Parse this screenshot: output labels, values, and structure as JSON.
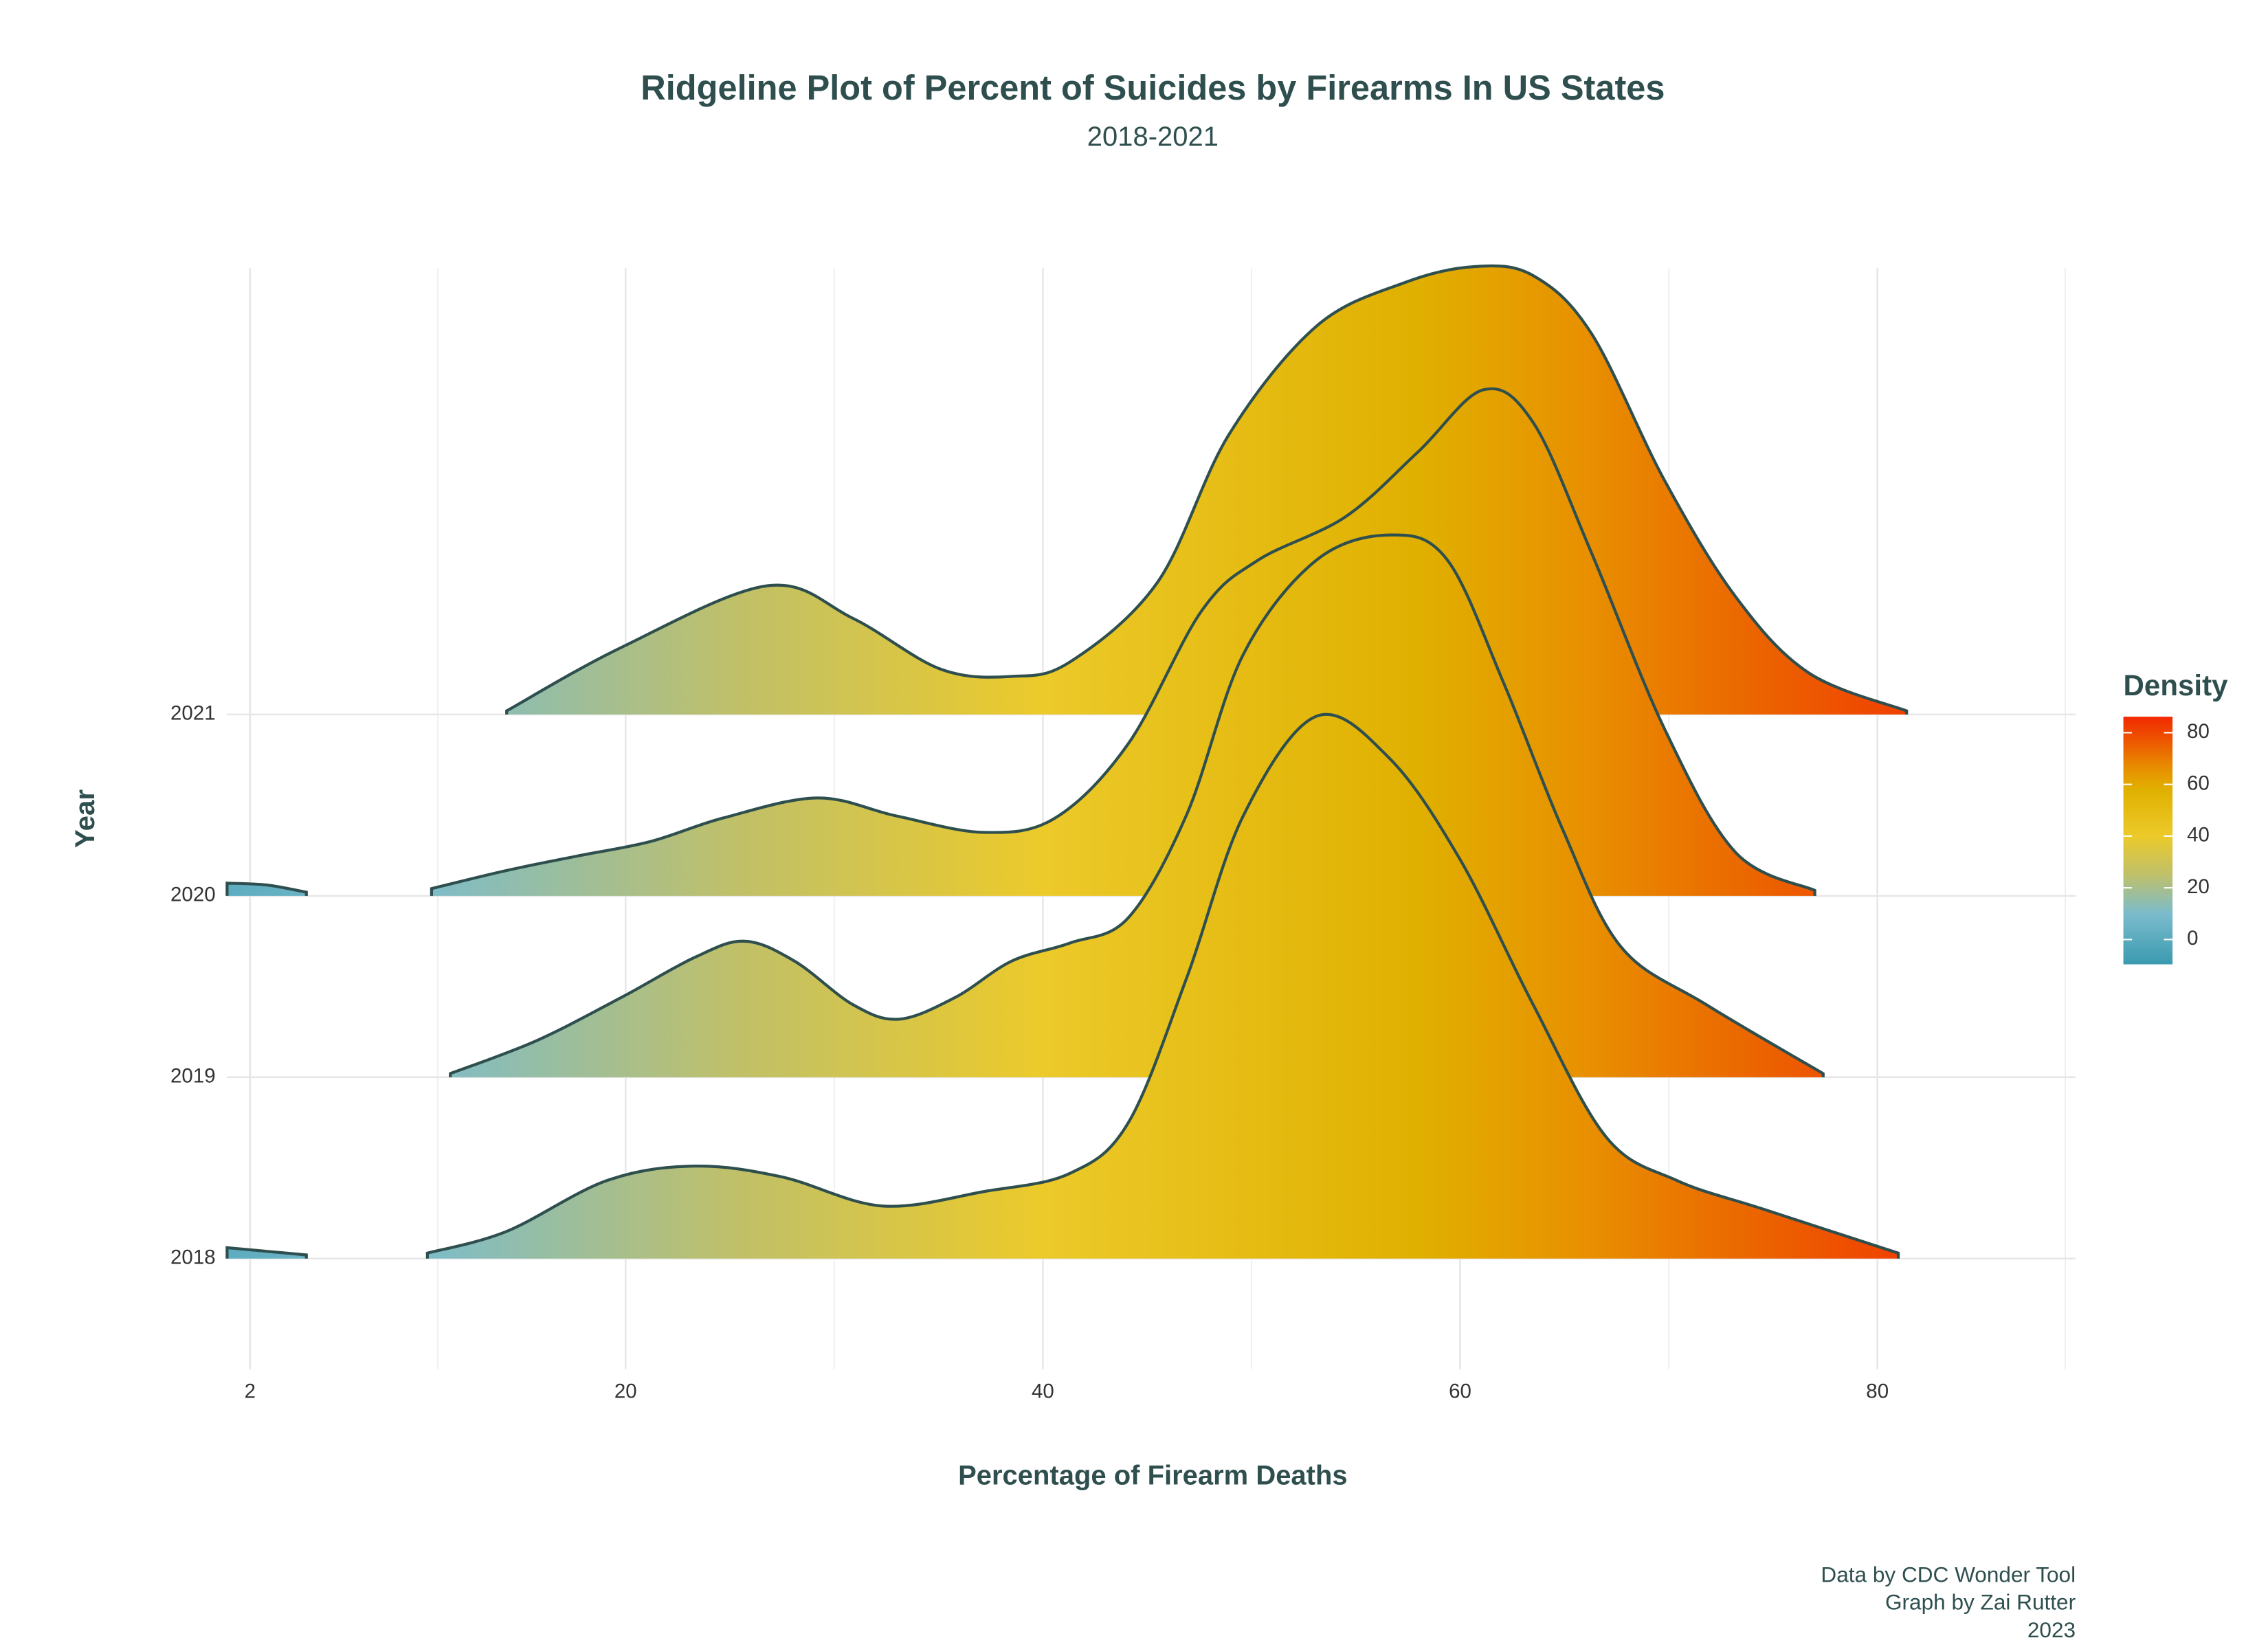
{
  "chart_data": {
    "type": "ridgeline",
    "title": "Ridgeline Plot of Percent of Suicides by Firearms In US States",
    "subtitle": "2018-2021",
    "x_label": "Percentage of Firearm Deaths",
    "y_label": "Year",
    "legend_title": "Density",
    "caption": [
      "Data by CDC Wonder Tool",
      "Graph by Zai Rutter",
      "2023"
    ],
    "categories": [
      "2018",
      "2019",
      "2020",
      "2021"
    ],
    "xlim": [
      0.9,
      89.5
    ],
    "xticks": [
      2,
      20,
      40,
      60,
      80
    ],
    "xminor": [
      11,
      30,
      50,
      70,
      89
    ],
    "grid": true,
    "line_color": "#2f4f4f",
    "colorlim": [
      -9.6,
      86.2
    ],
    "colorticks": [
      0,
      20,
      40,
      60,
      80
    ],
    "colorscale": [
      [
        -9.6,
        "#3a9ab0"
      ],
      [
        10,
        "#7bbccc"
      ],
      [
        25,
        "#bfc06a"
      ],
      [
        40,
        "#ecca2a"
      ],
      [
        58,
        "#e0b000"
      ],
      [
        66,
        "#e89000"
      ],
      [
        75,
        "#ec6000"
      ],
      [
        86.2,
        "#f22800"
      ]
    ],
    "series": [
      {
        "x": [
          0.9,
          2.8,
          4.7,
          null,
          10.5,
          14.3,
          19.1,
          23.3,
          27.5,
          32.3,
          37.2,
          41.3,
          44.1,
          46.9,
          49.6,
          53.1,
          56.6,
          60.0,
          63.5,
          67.0,
          70.4,
          74.6,
          81.0
        ],
        "values": [
          0.06,
          0.04,
          0.02,
          null,
          0.03,
          0.15,
          0.43,
          0.51,
          0.45,
          0.29,
          0.37,
          0.47,
          0.75,
          1.55,
          2.44,
          2.99,
          2.76,
          2.2,
          1.4,
          0.67,
          0.43,
          0.27,
          0.03
        ]
      },
      {
        "x": [
          11.6,
          15.7,
          19.8,
          23.3,
          25.7,
          28.1,
          30.9,
          33.1,
          35.8,
          38.5,
          41.3,
          44.1,
          46.9,
          49.6,
          53.1,
          56.7,
          59.4,
          62.1,
          64.9,
          67.7,
          71.8,
          77.4
        ],
        "values": [
          0.02,
          0.2,
          0.44,
          0.66,
          0.75,
          0.64,
          0.4,
          0.32,
          0.44,
          0.64,
          0.74,
          0.88,
          1.45,
          2.33,
          2.85,
          2.99,
          2.85,
          2.17,
          1.37,
          0.72,
          0.4,
          0.02
        ]
      },
      {
        "x": [
          0.9,
          2.8,
          4.7,
          null,
          10.7,
          14.3,
          17.7,
          21.2,
          24.7,
          29.2,
          33.0,
          37.2,
          40.6,
          44.1,
          47.6,
          50.3,
          54.5,
          58.0,
          61.1,
          63.5,
          66.3,
          69.8,
          73.2,
          77.0
        ],
        "values": [
          0.07,
          0.06,
          0.02,
          null,
          0.04,
          0.14,
          0.22,
          0.3,
          0.43,
          0.54,
          0.44,
          0.35,
          0.43,
          0.84,
          1.57,
          1.85,
          2.09,
          2.45,
          2.79,
          2.61,
          1.89,
          0.92,
          0.24,
          0.03
        ]
      },
      {
        "x": [
          14.3,
          19.8,
          26.8,
          30.9,
          35.1,
          38.5,
          41.3,
          45.5,
          48.9,
          53.1,
          57.3,
          60.7,
          63.5,
          66.3,
          69.8,
          73.2,
          76.7,
          81.4
        ],
        "values": [
          0.02,
          0.37,
          0.71,
          0.53,
          0.25,
          0.21,
          0.29,
          0.73,
          1.54,
          2.14,
          2.38,
          2.47,
          2.42,
          2.1,
          1.29,
          0.65,
          0.23,
          0.02
        ]
      }
    ]
  }
}
